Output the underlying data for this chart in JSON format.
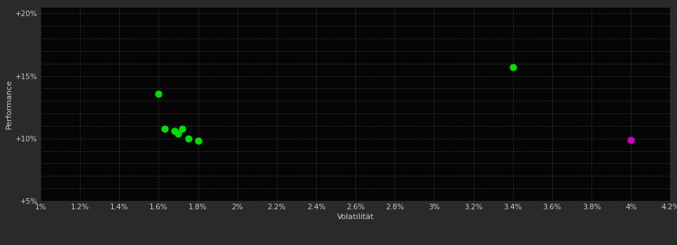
{
  "background_color": "#2a2a2a",
  "plot_bg_color": "#050505",
  "grid_color": "#4a4a4a",
  "xlabel": "Volatilität",
  "ylabel": "Performance",
  "xlim": [
    0.01,
    0.042
  ],
  "ylim": [
    0.05,
    0.205
  ],
  "xticks": [
    0.01,
    0.012,
    0.014,
    0.016,
    0.018,
    0.02,
    0.022,
    0.024,
    0.026,
    0.028,
    0.03,
    0.032,
    0.034,
    0.036,
    0.038,
    0.04,
    0.042
  ],
  "yticks": [
    0.05,
    0.1,
    0.15,
    0.2
  ],
  "minor_yticks": [
    0.05,
    0.06,
    0.07,
    0.08,
    0.09,
    0.1,
    0.11,
    0.12,
    0.13,
    0.14,
    0.15,
    0.16,
    0.17,
    0.18,
    0.19,
    0.2
  ],
  "green_points": [
    [
      0.016,
      0.136
    ],
    [
      0.0163,
      0.108
    ],
    [
      0.0168,
      0.106
    ],
    [
      0.017,
      0.104
    ],
    [
      0.0172,
      0.108
    ],
    [
      0.0175,
      0.1
    ],
    [
      0.018,
      0.098
    ],
    [
      0.034,
      0.157
    ]
  ],
  "magenta_points": [
    [
      0.04,
      0.099
    ]
  ],
  "green_color": "#00dd00",
  "magenta_color": "#cc00cc",
  "marker_size": 55,
  "tick_fontsize": 7.5,
  "label_fontsize": 8,
  "label_color": "#cccccc"
}
